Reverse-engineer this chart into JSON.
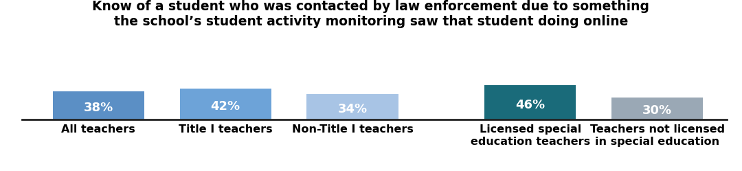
{
  "categories": [
    "All teachers",
    "Title I teachers",
    "Non-Title I teachers",
    "Licensed special\neducation teachers",
    "Teachers not licensed\nin special education"
  ],
  "values": [
    38,
    42,
    34,
    46,
    30
  ],
  "bar_colors": [
    "#5b8fc5",
    "#6da3d8",
    "#a8c4e5",
    "#1a6b7a",
    "#9aa8b5"
  ],
  "value_labels": [
    "38%",
    "42%",
    "34%",
    "46%",
    "30%"
  ],
  "title_line1": "Know of a student who was contacted by law enforcement due to something",
  "title_line2": "the school’s student activity monitoring saw that student doing online",
  "background_color": "#ffffff",
  "label_fontsize": 11.5,
  "value_fontsize": 13,
  "title_fontsize": 13.5,
  "ylim": [
    0,
    55
  ],
  "x_positions": [
    0,
    1,
    2,
    3.4,
    4.4
  ],
  "bar_width": 0.72
}
